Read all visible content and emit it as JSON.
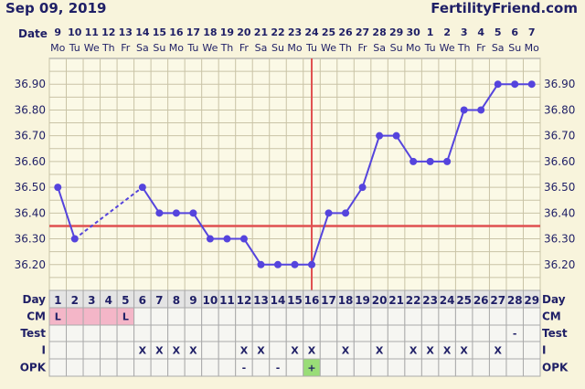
{
  "header": {
    "date": "Sep 09, 2019",
    "site": "FertilityFriend.com",
    "date_label": "Date"
  },
  "chart_data": {
    "type": "line",
    "dates": [
      "9",
      "10",
      "11",
      "12",
      "13",
      "14",
      "15",
      "16",
      "17",
      "18",
      "19",
      "20",
      "21",
      "22",
      "23",
      "24",
      "25",
      "26",
      "27",
      "28",
      "29",
      "30",
      "1",
      "2",
      "3",
      "4",
      "5",
      "6",
      "7"
    ],
    "weekdays": [
      "Mo",
      "Tu",
      "We",
      "Th",
      "Fr",
      "Sa",
      "Su",
      "Mo",
      "Tu",
      "We",
      "Th",
      "Fr",
      "Sa",
      "Su",
      "Mo",
      "Tu",
      "We",
      "Th",
      "Fr",
      "Sa",
      "Su",
      "Mo",
      "Tu",
      "We",
      "Th",
      "Fr",
      "Sa",
      "Su",
      "Mo"
    ],
    "days": [
      1,
      2,
      3,
      4,
      5,
      6,
      7,
      8,
      9,
      10,
      11,
      12,
      13,
      14,
      15,
      16,
      17,
      18,
      19,
      20,
      21,
      22,
      23,
      24,
      25,
      26,
      27,
      28,
      29
    ],
    "temps": [
      36.5,
      36.3,
      null,
      null,
      null,
      36.5,
      36.4,
      36.4,
      36.4,
      36.3,
      36.3,
      36.3,
      36.2,
      36.2,
      36.2,
      36.2,
      36.4,
      36.4,
      36.5,
      36.7,
      36.7,
      36.6,
      36.6,
      36.6,
      36.8,
      36.8,
      36.9,
      36.9,
      36.9
    ],
    "ylim": [
      36.1,
      37.0
    ],
    "yticks": [
      "36.20",
      "36.30",
      "36.40",
      "36.50",
      "36.60",
      "36.70",
      "36.80",
      "36.90"
    ],
    "coverline": 36.35,
    "ovulation_day": 16,
    "line_color": "#5544dd",
    "coverline_color": "#e05050"
  },
  "rows": {
    "labels": {
      "day": "Day",
      "cm": "CM",
      "test": "Test",
      "i": "I",
      "opk": "OPK"
    },
    "cm": [
      "L",
      "",
      "",
      "",
      "L",
      "",
      "",
      "",
      "",
      "",
      "",
      "",
      "",
      "",
      "",
      "",
      "",
      "",
      "",
      "",
      "",
      "",
      "",
      "",
      "",
      "",
      "",
      "",
      ""
    ],
    "cm_highlight_days": [
      1,
      2,
      3,
      4,
      5
    ],
    "test": [
      "",
      "",
      "",
      "",
      "",
      "",
      "",
      "",
      "",
      "",
      "",
      "",
      "",
      "",
      "",
      "",
      "",
      "",
      "",
      "",
      "",
      "",
      "",
      "",
      "",
      "",
      "",
      "-",
      ""
    ],
    "i": [
      "",
      "",
      "",
      "",
      "",
      "X",
      "X",
      "X",
      "X",
      "",
      "",
      "X",
      "X",
      "",
      "X",
      "X",
      "",
      "X",
      "",
      "X",
      "",
      "X",
      "X",
      "X",
      "X",
      "",
      "X",
      "",
      ""
    ],
    "opk": [
      "",
      "",
      "",
      "",
      "",
      "",
      "",
      "",
      "",
      "",
      "",
      "-",
      "",
      "-",
      "",
      "+",
      "",
      "",
      "",
      "",
      "",
      "",
      "",
      "",
      "",
      "",
      "",
      "",
      ""
    ]
  }
}
